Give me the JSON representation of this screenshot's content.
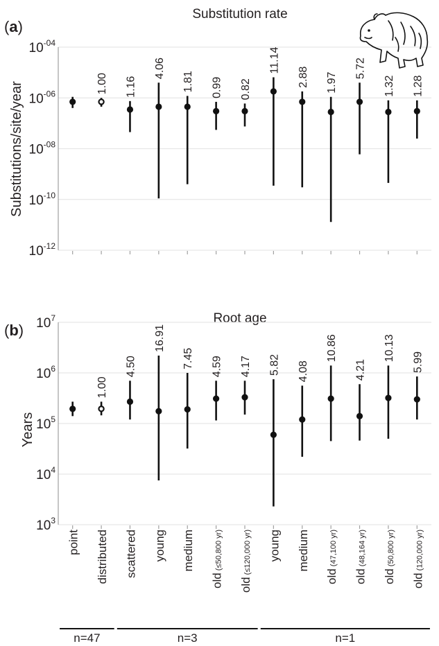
{
  "chart_data": [
    {
      "type": "scatter",
      "panel_label": "a",
      "title": "Substitution rate",
      "ylabel": "Substitutions/site/year",
      "yscale": "log",
      "ylim": [
        1e-12,
        0.0001
      ],
      "yticks": [
        {
          "base": "10",
          "exp": "-04",
          "value": 0.0001
        },
        {
          "base": "10",
          "exp": "-06",
          "value": 1e-06
        },
        {
          "base": "10",
          "exp": "-08",
          "value": 1e-08
        },
        {
          "base": "10",
          "exp": "-10",
          "value": 1e-10
        },
        {
          "base": "10",
          "exp": "-12",
          "value": 1e-12
        }
      ],
      "grid": true,
      "points": [
        {
          "value": 7e-07,
          "low": 4e-07,
          "high": 1.1e-06,
          "label": "",
          "open": false
        },
        {
          "value": 7e-07,
          "low": 4.5e-07,
          "high": 1e-06,
          "label": "1.00",
          "open": true
        },
        {
          "value": 3.5e-07,
          "low": 4.5e-08,
          "high": 7.5e-07,
          "label": "1.16",
          "open": false
        },
        {
          "value": 4.5e-07,
          "low": 1.1e-10,
          "high": 4e-06,
          "label": "4.06",
          "open": false
        },
        {
          "value": 4.5e-07,
          "low": 4e-10,
          "high": 1.2e-06,
          "label": "1.81",
          "open": false
        },
        {
          "value": 3e-07,
          "low": 5.5e-08,
          "high": 7e-07,
          "label": "0.99",
          "open": false
        },
        {
          "value": 3e-07,
          "low": 7.5e-08,
          "high": 6e-07,
          "label": "0.82",
          "open": false
        },
        {
          "value": 1.8e-06,
          "low": 3.5e-10,
          "high": 6.5e-06,
          "label": "11.14",
          "open": false
        },
        {
          "value": 7e-07,
          "low": 3e-10,
          "high": 1.8e-06,
          "label": "2.88",
          "open": false
        },
        {
          "value": 2.8e-07,
          "low": 1.3e-11,
          "high": 1.1e-06,
          "label": "1.97",
          "open": false
        },
        {
          "value": 7e-07,
          "low": 6e-09,
          "high": 4e-06,
          "label": "5.72",
          "open": false
        },
        {
          "value": 2.8e-07,
          "low": 4.5e-10,
          "high": 8e-07,
          "label": "1.32",
          "open": false
        },
        {
          "value": 3e-07,
          "low": 2.5e-08,
          "high": 8e-07,
          "label": "1.28",
          "open": false
        }
      ]
    },
    {
      "type": "scatter",
      "panel_label": "b",
      "title": "Root age",
      "ylabel": "Years",
      "yscale": "log",
      "ylim": [
        1000,
        10000000
      ],
      "yticks": [
        {
          "base": "10",
          "exp": "7",
          "value": 10000000
        },
        {
          "base": "10",
          "exp": "6",
          "value": 1000000
        },
        {
          "base": "10",
          "exp": "5",
          "value": 100000
        },
        {
          "base": "10",
          "exp": "4",
          "value": 10000
        },
        {
          "base": "10",
          "exp": "3",
          "value": 1000
        }
      ],
      "grid": true,
      "points": [
        {
          "value": 195000,
          "low": 140000,
          "high": 270000,
          "label": "",
          "open": false
        },
        {
          "value": 195000,
          "low": 145000,
          "high": 270000,
          "label": "1.00",
          "open": true
        },
        {
          "value": 270000,
          "low": 120000,
          "high": 700000,
          "label": "4.50",
          "open": false
        },
        {
          "value": 175000,
          "low": 7500,
          "high": 2200000,
          "label": "16.91",
          "open": false
        },
        {
          "value": 190000,
          "low": 32000,
          "high": 1000000,
          "label": "7.45",
          "open": false
        },
        {
          "value": 310000,
          "low": 115000,
          "high": 700000,
          "label": "4.59",
          "open": false
        },
        {
          "value": 330000,
          "low": 150000,
          "high": 700000,
          "label": "4.17",
          "open": false
        },
        {
          "value": 60000,
          "low": 2300,
          "high": 750000,
          "label": "5.82",
          "open": false
        },
        {
          "value": 120000,
          "low": 22000,
          "high": 560000,
          "label": "4.08",
          "open": false
        },
        {
          "value": 310000,
          "low": 45000,
          "high": 1400000,
          "label": "10.86",
          "open": false
        },
        {
          "value": 140000,
          "low": 46000,
          "high": 600000,
          "label": "4.21",
          "open": false
        },
        {
          "value": 320000,
          "low": 50000,
          "high": 1400000,
          "label": "10.13",
          "open": false
        },
        {
          "value": 300000,
          "low": 120000,
          "high": 850000,
          "label": "5.99",
          "open": false
        }
      ]
    }
  ],
  "categories": [
    {
      "main": "point",
      "sub": ""
    },
    {
      "main": "distributed",
      "sub": ""
    },
    {
      "main": "scattered",
      "sub": ""
    },
    {
      "main": "young",
      "sub": ""
    },
    {
      "main": "medium",
      "sub": ""
    },
    {
      "main": "old",
      "sub": "(≤50,800 yr)"
    },
    {
      "main": "old",
      "sub": "(≤120,000 yr)"
    },
    {
      "main": "young",
      "sub": ""
    },
    {
      "main": "medium",
      "sub": ""
    },
    {
      "main": "old",
      "sub": "(47,100 yr)"
    },
    {
      "main": "old",
      "sub": "(48,164 yr)"
    },
    {
      "main": "old",
      "sub": "(50,800 yr)"
    },
    {
      "main": "old",
      "sub": "(120,000 yr)"
    }
  ],
  "groups": [
    {
      "label": "n=47",
      "from": 0,
      "to": 1
    },
    {
      "label": "n=3",
      "from": 2,
      "to": 6
    },
    {
      "label": "n=1",
      "from": 7,
      "to": 12
    }
  ],
  "icons": {
    "corner_illustration": "bear-icon"
  }
}
